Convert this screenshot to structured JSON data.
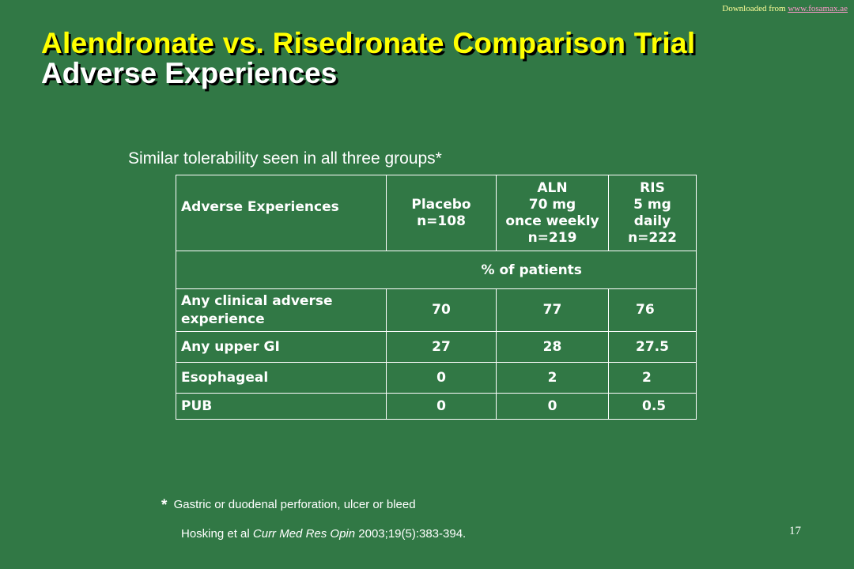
{
  "header": {
    "download_prefix": "Downloaded from",
    "download_link": "www.fosamax.ae"
  },
  "title": {
    "line1": "Alendronate vs. Risedronate Comparison Trial",
    "line2": "Adverse Experiences"
  },
  "subtitle": "Similar tolerability seen in all three groups*",
  "table": {
    "header": {
      "label": "Adverse Experiences",
      "placebo": [
        "Placebo",
        "n=108"
      ],
      "aln": [
        "ALN",
        "70 mg",
        "once weekly",
        "n=219"
      ],
      "ris": [
        "RIS",
        "5 mg",
        "daily",
        "n=222"
      ]
    },
    "unit_label": "% of patients",
    "rows": [
      {
        "label_lines": [
          "Any clinical adverse",
          "experience"
        ],
        "values": [
          "70",
          "77",
          "76"
        ]
      },
      {
        "label_lines": [
          "Any upper GI"
        ],
        "values": [
          "27",
          "28",
          "27.5"
        ]
      },
      {
        "label_lines": [
          "Esophageal"
        ],
        "values": [
          "0",
          "2",
          "2"
        ]
      },
      {
        "label_lines": [
          "PUB"
        ],
        "values": [
          "0",
          "0",
          "0.5"
        ]
      }
    ]
  },
  "footnote": {
    "marker": "*",
    "text": "Gastric or duodenal perforation, ulcer or bleed"
  },
  "citation": {
    "authors": "Hosking et al",
    "journal": "Curr Med Res Opin",
    "details": "2003;19(5):383-394."
  },
  "page_number": "17"
}
